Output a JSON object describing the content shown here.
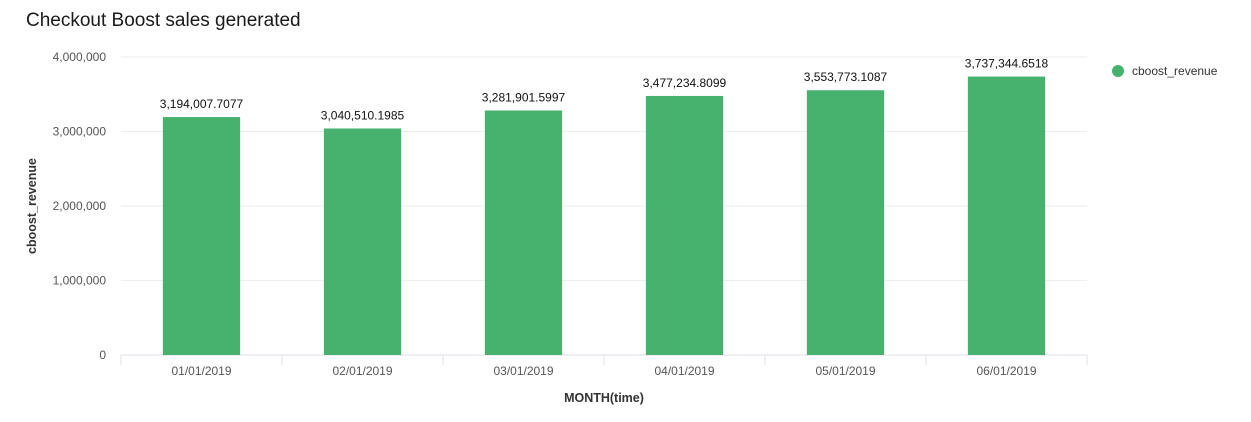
{
  "chart_data": {
    "type": "bar",
    "title": "Checkout Boost sales generated",
    "xlabel": "MONTH(time)",
    "ylabel": "cboost_revenue",
    "categories": [
      "01/01/2019",
      "02/01/2019",
      "03/01/2019",
      "04/01/2019",
      "05/01/2019",
      "06/01/2019"
    ],
    "series": [
      {
        "name": "cboost_revenue",
        "values": [
          3194007.7077,
          3040510.1985,
          3281901.5997,
          3477234.8099,
          3553773.1087,
          3737344.6518
        ],
        "labels": [
          "3,194,007.7077",
          "3,040,510.1985",
          "3,281,901.5997",
          "3,477,234.8099",
          "3,553,773.1087",
          "3,737,344.6518"
        ]
      }
    ],
    "ylim": [
      0,
      4000000
    ],
    "yticks": [
      0,
      1000000,
      2000000,
      3000000,
      4000000
    ],
    "ytick_labels": [
      "0",
      "1,000,000",
      "2,000,000",
      "3,000,000",
      "4,000,000"
    ],
    "grid": true,
    "legend_position": "top-right",
    "bar_color": "#47b26d"
  }
}
